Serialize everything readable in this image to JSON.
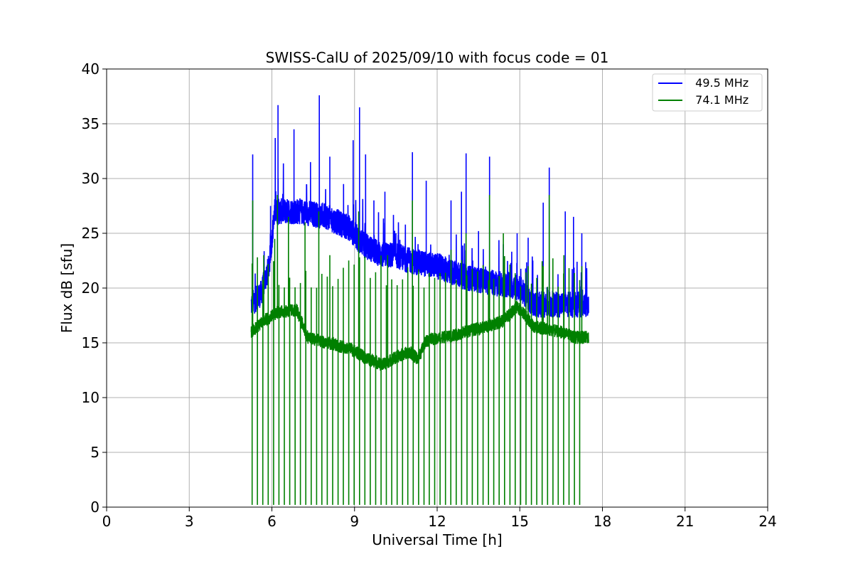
{
  "chart_data": {
    "type": "line",
    "title": "SWISS-CalU of 2025/09/10 with focus code = 01",
    "xlabel": "Universal Time [h]",
    "ylabel": "Flux dB [sfu]",
    "xlim": [
      0,
      24
    ],
    "ylim": [
      0,
      40
    ],
    "xticks": [
      0,
      3,
      6,
      9,
      12,
      15,
      18,
      21,
      24
    ],
    "yticks": [
      0,
      5,
      10,
      15,
      20,
      25,
      30,
      35,
      40
    ],
    "grid": true,
    "legend_position": "top-right",
    "data_range_hours": [
      5.25,
      17.5
    ],
    "series": [
      {
        "name": "49.5 MHz",
        "label": "  49.5 MHz",
        "color": "#0000ff",
        "baseline": [
          [
            5.25,
            18.5
          ],
          [
            5.6,
            19.5
          ],
          [
            5.9,
            22.0
          ],
          [
            6.1,
            27.0
          ],
          [
            7.0,
            27.0
          ],
          [
            8.0,
            26.5
          ],
          [
            8.8,
            25.5
          ],
          [
            9.3,
            24.0
          ],
          [
            10.0,
            23.0
          ],
          [
            10.5,
            23.0
          ],
          [
            11.0,
            22.5
          ],
          [
            12.0,
            22.0
          ],
          [
            13.0,
            21.0
          ],
          [
            14.0,
            20.5
          ],
          [
            15.0,
            20.0
          ],
          [
            15.5,
            18.5
          ],
          [
            16.0,
            18.5
          ],
          [
            17.0,
            18.5
          ],
          [
            17.5,
            18.5
          ]
        ],
        "spikes": [
          [
            5.3,
            32.2
          ],
          [
            5.95,
            27.5
          ],
          [
            6.12,
            33.7
          ],
          [
            6.22,
            36.7
          ],
          [
            6.6,
            28.0
          ],
          [
            6.8,
            34.5
          ],
          [
            7.4,
            31.5
          ],
          [
            7.72,
            37.6
          ],
          [
            8.1,
            32.0
          ],
          [
            8.6,
            29.5
          ],
          [
            8.95,
            33.5
          ],
          [
            9.18,
            36.5
          ],
          [
            9.4,
            32.2
          ],
          [
            9.7,
            28.0
          ],
          [
            10.1,
            28.8
          ],
          [
            10.5,
            25.0
          ],
          [
            11.1,
            32.4
          ],
          [
            11.6,
            29.8
          ],
          [
            12.5,
            28.0
          ],
          [
            12.88,
            28.8
          ],
          [
            13.05,
            32.3
          ],
          [
            13.5,
            25.2
          ],
          [
            13.9,
            32.0
          ],
          [
            14.4,
            24.0
          ],
          [
            14.9,
            25.0
          ],
          [
            15.3,
            24.6
          ],
          [
            15.85,
            27.8
          ],
          [
            16.07,
            31.0
          ],
          [
            16.65,
            27.0
          ],
          [
            16.95,
            26.5
          ],
          [
            17.25,
            25.0
          ]
        ]
      },
      {
        "name": "74.1 MHz",
        "label": "  74.1 MHz",
        "color": "#008000",
        "baseline": [
          [
            5.25,
            16.0
          ],
          [
            5.7,
            17.0
          ],
          [
            6.2,
            17.8
          ],
          [
            6.9,
            18.0
          ],
          [
            7.3,
            15.5
          ],
          [
            8.0,
            15.0
          ],
          [
            8.8,
            14.5
          ],
          [
            9.5,
            13.5
          ],
          [
            10.0,
            13.0
          ],
          [
            10.6,
            13.8
          ],
          [
            11.0,
            14.2
          ],
          [
            11.3,
            13.5
          ],
          [
            11.6,
            15.2
          ],
          [
            12.5,
            15.6
          ],
          [
            13.0,
            16.0
          ],
          [
            13.8,
            16.5
          ],
          [
            14.4,
            17.0
          ],
          [
            14.9,
            18.3
          ],
          [
            15.2,
            17.5
          ],
          [
            15.5,
            16.5
          ],
          [
            16.5,
            16.0
          ],
          [
            17.0,
            15.5
          ],
          [
            17.5,
            15.5
          ]
        ],
        "spikes": [
          [
            5.3,
            28.0
          ],
          [
            5.7,
            23.0
          ],
          [
            6.1,
            24.5
          ],
          [
            6.2,
            28.5
          ],
          [
            6.6,
            26.5
          ],
          [
            7.2,
            26.0
          ],
          [
            7.7,
            27.0
          ],
          [
            8.1,
            23.0
          ],
          [
            9.15,
            27.0
          ],
          [
            10.2,
            23.0
          ],
          [
            11.1,
            28.0
          ],
          [
            12.5,
            23.5
          ],
          [
            13.05,
            25.0
          ],
          [
            13.9,
            28.5
          ],
          [
            14.4,
            25.0
          ],
          [
            15.3,
            22.0
          ],
          [
            15.85,
            22.0
          ],
          [
            16.07,
            28.5
          ],
          [
            16.6,
            23.0
          ],
          [
            17.25,
            22.0
          ]
        ],
        "dropouts_to_zero": true
      }
    ]
  }
}
